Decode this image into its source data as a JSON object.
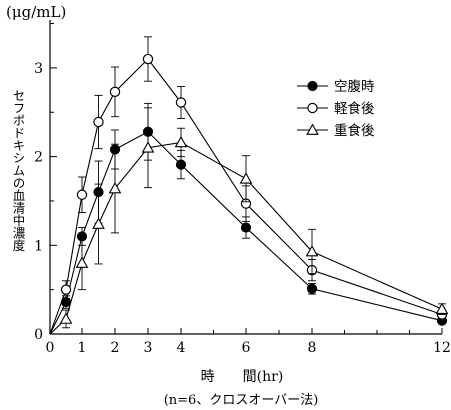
{
  "chart_data": {
    "type": "line",
    "title": "",
    "unit_label": "(μg/mL)",
    "ylabel": "セフポドキシムの血清中濃度",
    "xlabel": "時　　間(hr)",
    "footnote": "(n=6、クロスオーバー法)",
    "x_ticks": [
      "0",
      "1",
      "2",
      "3",
      "4",
      "6",
      "8",
      "12"
    ],
    "y_ticks": [
      "0",
      "1",
      "2",
      "3"
    ],
    "xlim": [
      0,
      12
    ],
    "ylim": [
      0,
      3.5
    ],
    "legend_position": "right",
    "series": [
      {
        "name": "空腹時",
        "marker": "filled-circle",
        "x": [
          0,
          0.5,
          1,
          1.5,
          2,
          3,
          4,
          6,
          8,
          12
        ],
        "y": [
          0,
          0.36,
          1.1,
          1.6,
          2.08,
          2.28,
          1.91,
          1.2,
          0.51,
          0.15
        ],
        "err": [
          0,
          0.07,
          0.1,
          0.35,
          0.22,
          0.32,
          0.16,
          0.12,
          0.06,
          0.03
        ]
      },
      {
        "name": "軽食後",
        "marker": "open-circle",
        "x": [
          0,
          0.5,
          1,
          1.5,
          2,
          3,
          4,
          6,
          8,
          12
        ],
        "y": [
          0,
          0.5,
          1.57,
          2.39,
          2.73,
          3.1,
          2.61,
          1.47,
          0.72,
          0.22
        ],
        "err": [
          0,
          0.1,
          0.2,
          0.3,
          0.28,
          0.25,
          0.18,
          0.2,
          0.12,
          0.05
        ]
      },
      {
        "name": "重食後",
        "marker": "open-triangle",
        "x": [
          0,
          0.5,
          1,
          1.5,
          2,
          3,
          4,
          6,
          8,
          12
        ],
        "y": [
          0,
          0.17,
          0.8,
          1.24,
          1.64,
          2.1,
          2.16,
          1.75,
          0.93,
          0.28
        ],
        "err": [
          0,
          0.1,
          0.3,
          0.45,
          0.5,
          0.45,
          0.16,
          0.26,
          0.25,
          0.06
        ]
      }
    ]
  }
}
